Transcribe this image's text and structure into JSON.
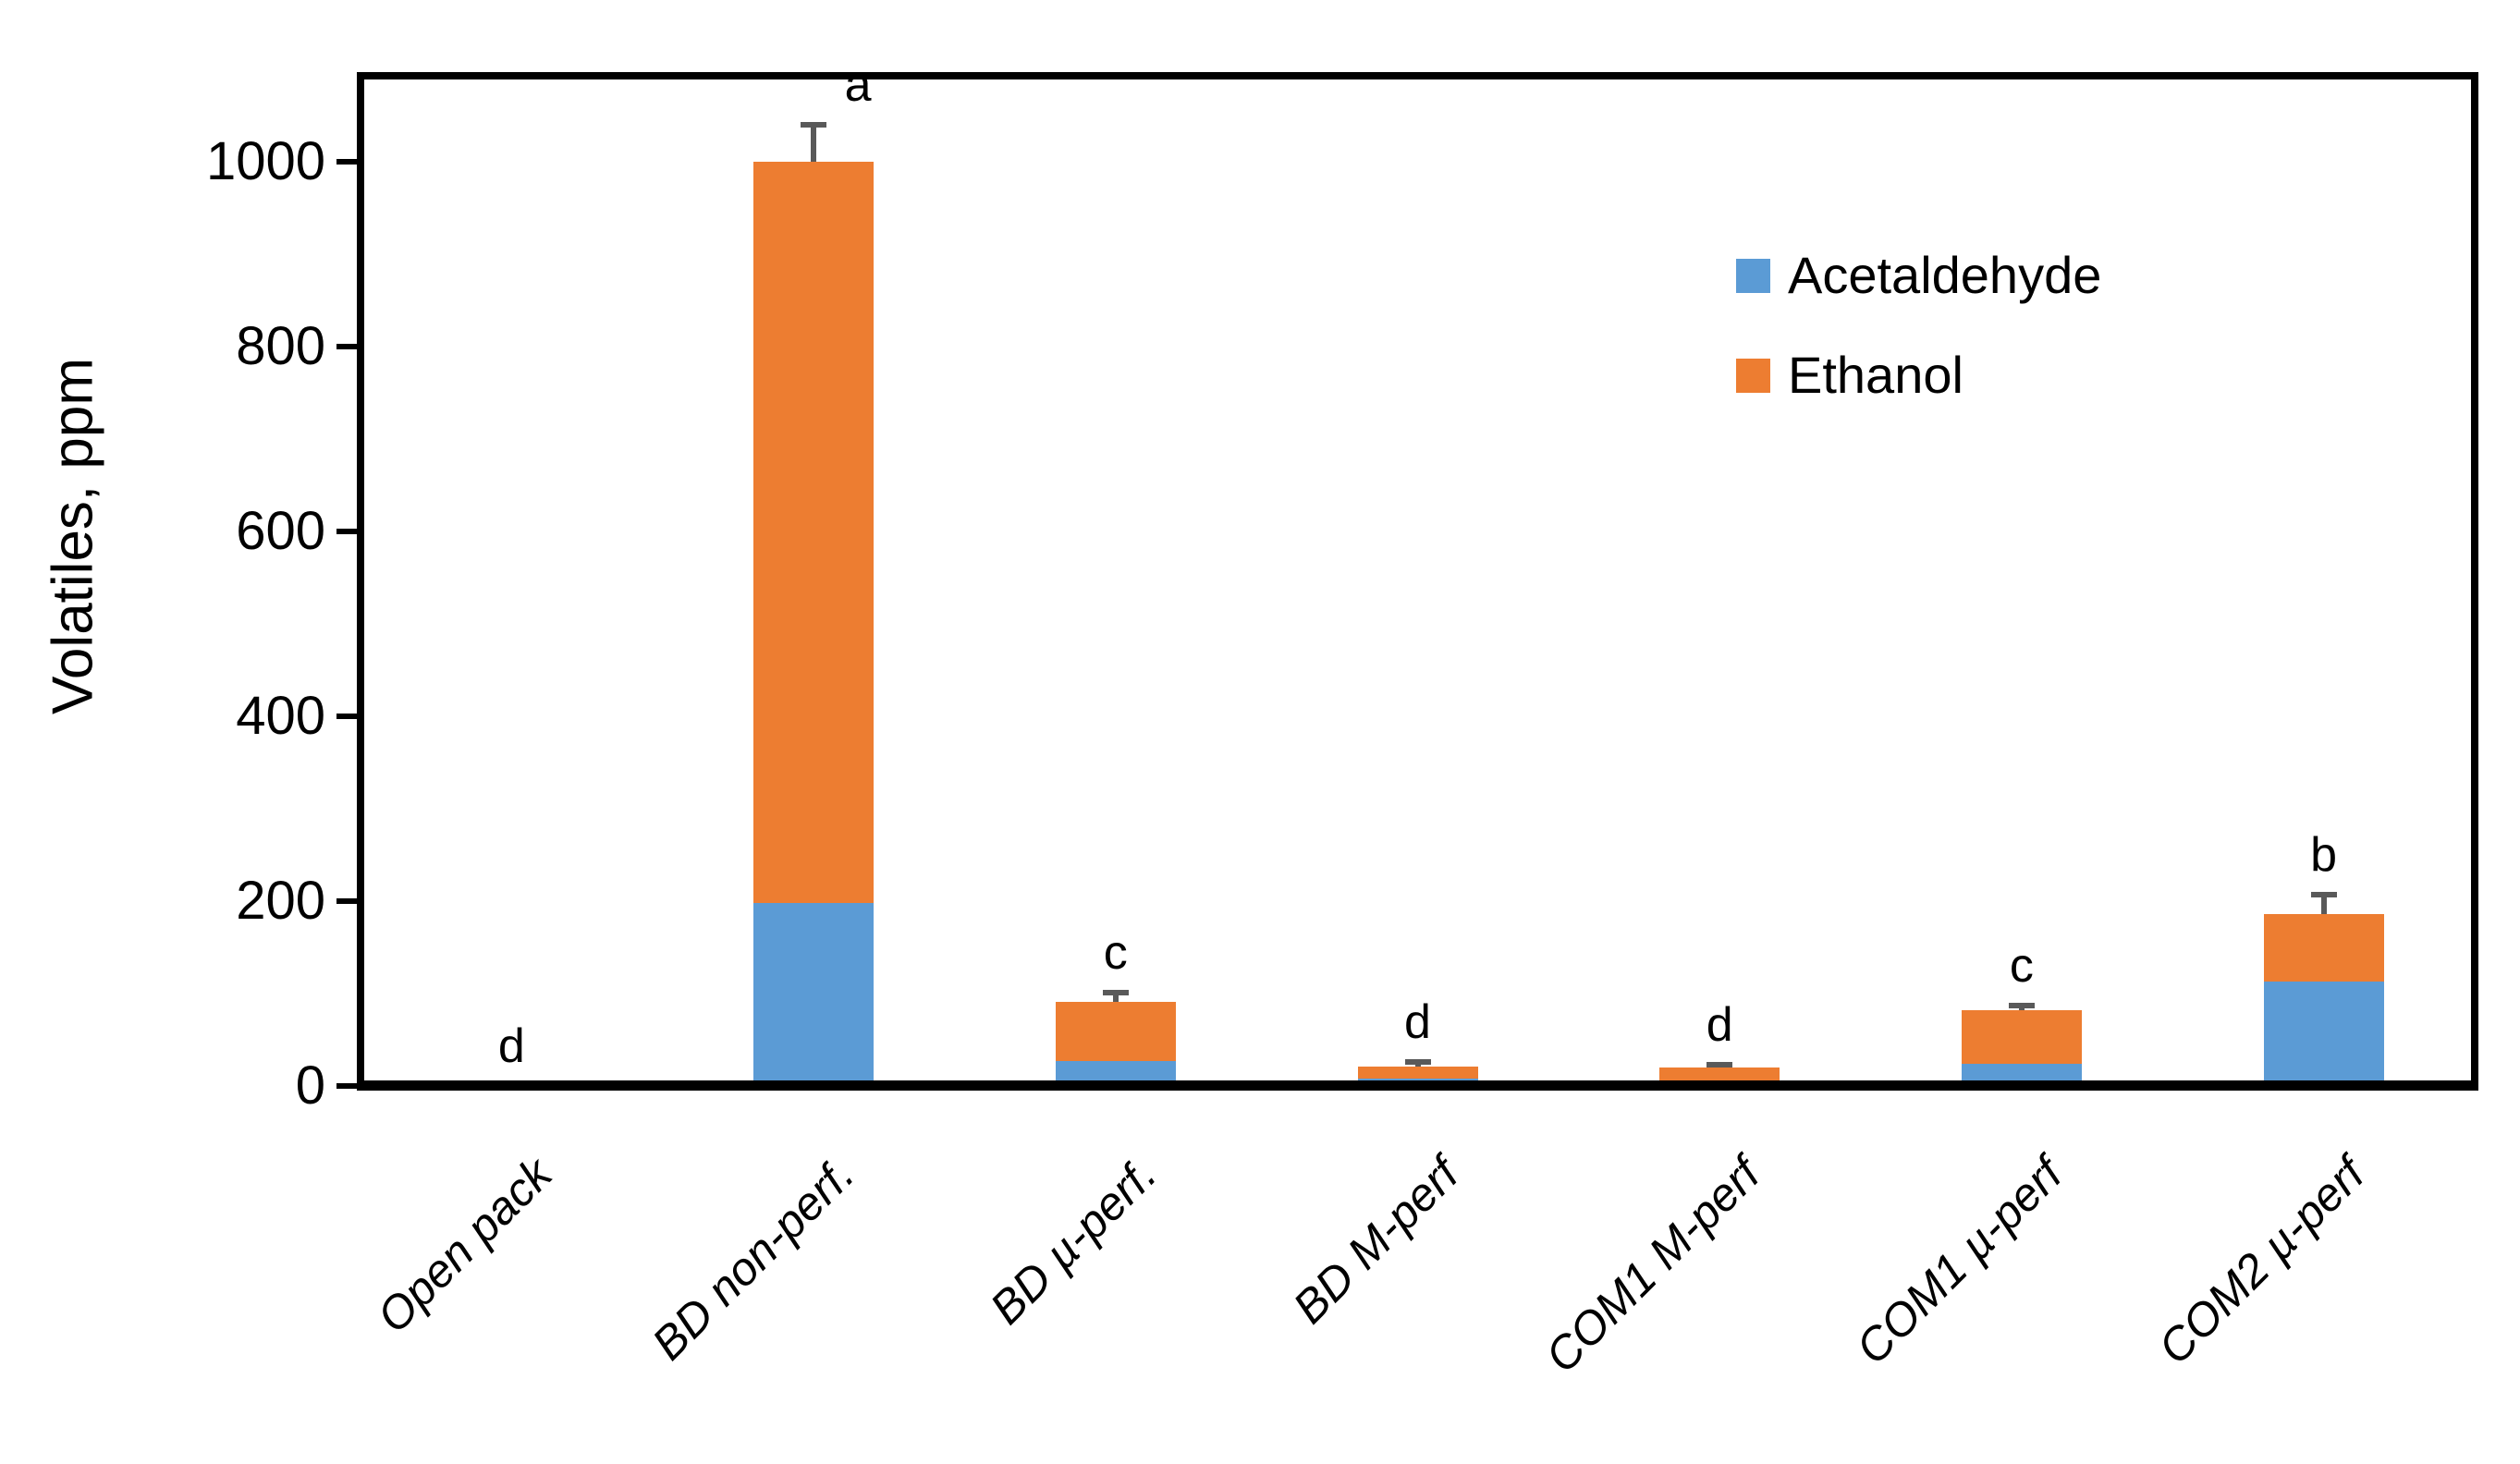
{
  "chart_data": {
    "type": "bar",
    "stacked": true,
    "orientation": "vertical",
    "title": "",
    "ylabel": "Volatiles, ppm",
    "ylim": [
      0,
      1093
    ],
    "yticks": [
      0,
      200,
      400,
      600,
      800,
      1000
    ],
    "grid": false,
    "legend_position": "top-right-inside",
    "categories": [
      "Open pack",
      "BD non-perf.",
      "BD µ-perf.",
      "BD M-perf",
      "COM1 M-perf",
      "COM1 µ-perf",
      "COM2 µ-perf"
    ],
    "series": [
      {
        "name": "Acetaldehyde",
        "color": "#5B9BD5",
        "values": [
          0,
          198,
          27,
          8,
          6,
          24,
          113
        ]
      },
      {
        "name": "Ethanol",
        "color": "#ED7D31",
        "values": [
          0,
          802,
          64,
          13,
          14,
          58,
          73
        ]
      }
    ],
    "totals": [
      0,
      1000,
      91,
      21,
      20,
      82,
      186
    ],
    "error_bars": {
      "color": "#595959",
      "plus_values": [
        0,
        40,
        10,
        5,
        3,
        5,
        21
      ]
    },
    "significance_letters": [
      "d",
      "a",
      "c",
      "d",
      "d",
      "c",
      "b"
    ],
    "axis_color": "#000000"
  }
}
